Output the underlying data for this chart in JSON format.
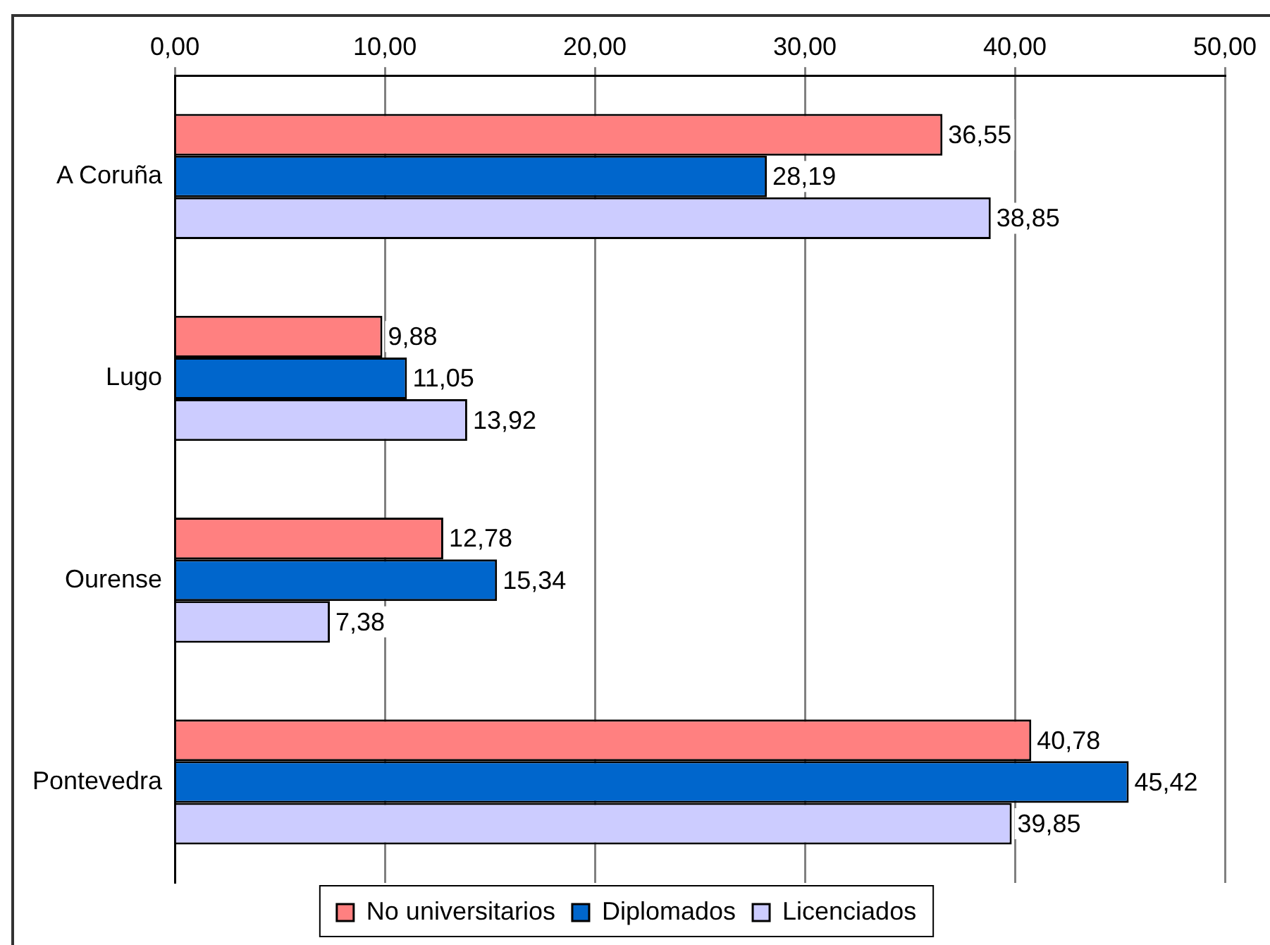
{
  "chart_data": {
    "type": "bar",
    "orientation": "horizontal",
    "categories": [
      "A Coruña",
      "Lugo",
      "Ourense",
      "Pontevedra"
    ],
    "series": [
      {
        "name": "No universitarios",
        "color": "#ff8080",
        "values": [
          36.55,
          9.88,
          12.78,
          40.78
        ],
        "value_labels": [
          "36,55",
          "9,88",
          "12,78",
          "40,78"
        ]
      },
      {
        "name": "Diplomados",
        "color": "#0066cc",
        "values": [
          28.19,
          11.05,
          15.34,
          45.42
        ],
        "value_labels": [
          "28,19",
          "11,05",
          "15,34",
          "45,42"
        ]
      },
      {
        "name": "Licenciados",
        "color": "#ccccff",
        "values": [
          38.85,
          13.92,
          7.38,
          39.85
        ],
        "value_labels": [
          "38,85",
          "13,92",
          "7,38",
          "39,85"
        ]
      }
    ],
    "xlim": [
      0,
      50
    ],
    "xticks": [
      {
        "value": 0,
        "label": "0,00"
      },
      {
        "value": 10,
        "label": "10,00"
      },
      {
        "value": 20,
        "label": "20,00"
      },
      {
        "value": 30,
        "label": "30,00"
      },
      {
        "value": 40,
        "label": "40,00"
      },
      {
        "value": 50,
        "label": "50,00"
      }
    ],
    "grid": "x",
    "legend": "bottom"
  }
}
